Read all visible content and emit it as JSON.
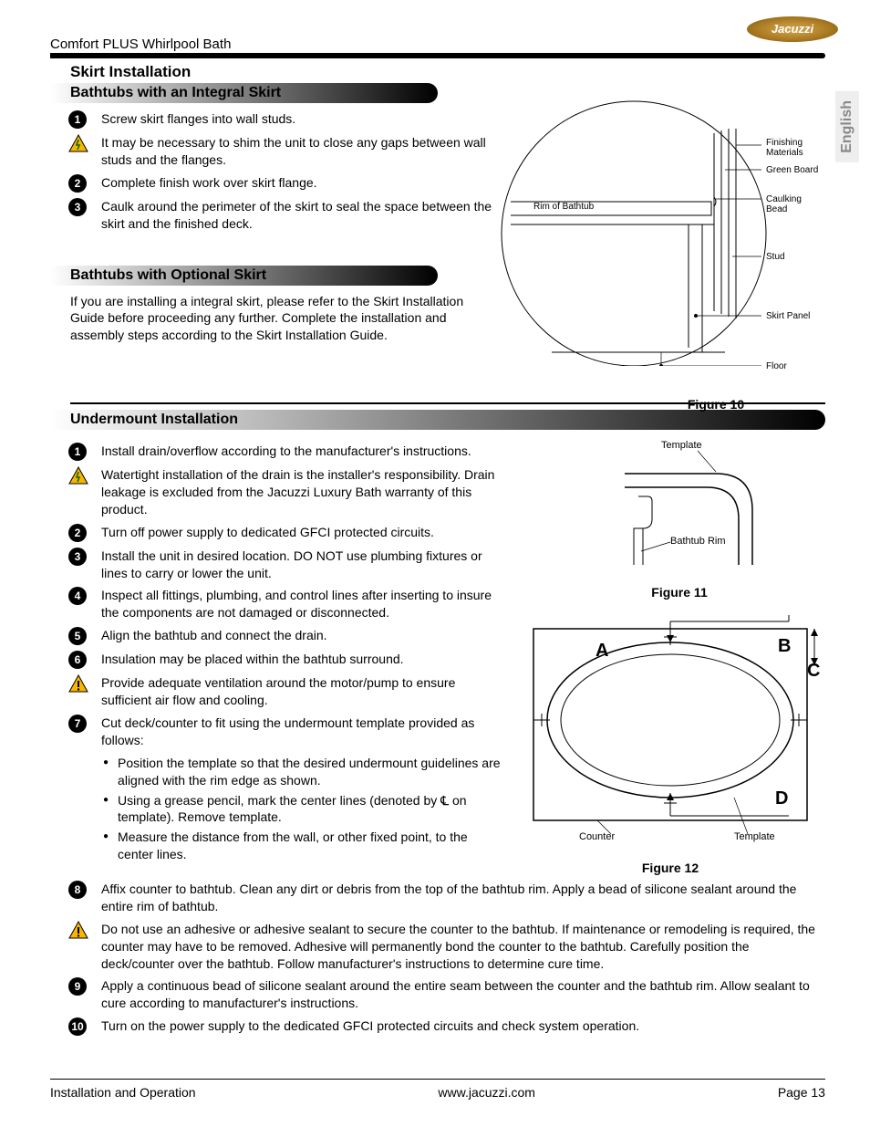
{
  "brand": "Jacuzzi",
  "product": "Comfort PLUS Whirlpool Bath",
  "language_tab": "English",
  "section_title": "Skirt Installation",
  "subsection1": {
    "title": "Bathtubs with an Integral Skirt",
    "grad_width": 425,
    "steps": [
      {
        "n": "1",
        "text": "Screw skirt flanges into wall studs."
      },
      {
        "warn": "shock",
        "text": "It may be necessary to shim the unit to close any gaps between wall studs and the flanges."
      },
      {
        "n": "2",
        "text": "Complete finish work over skirt flange."
      },
      {
        "n": "3",
        "text": "Caulk around the perimeter of the skirt to seal the space between the skirt and the finished deck."
      }
    ]
  },
  "subsection2": {
    "title": "Bathtubs with Optional Skirt",
    "grad_width": 425,
    "para": "If you are installing a integral skirt, please refer to the Skirt Installation Guide before proceeding any further. Complete the installation and assembly steps according to the Skirt Installation Guide."
  },
  "figure10": {
    "caption": "Figure 10",
    "labels": {
      "rim": "Rim of Bathtub",
      "finishing": "Finishing Materials",
      "greenboard": "Green Board",
      "caulking": "Caulking Bead",
      "stud": "Stud",
      "skirt": "Skirt Panel",
      "floor": "Floor"
    }
  },
  "section3": {
    "title": "Undermount Installation",
    "grad_width": 850,
    "steps_top": [
      {
        "n": "1",
        "text": "Install drain/overflow according to the manufacturer's instructions."
      },
      {
        "warn": "shock",
        "text": "Watertight installation of the drain is the installer's responsibility. Drain leakage is excluded from the Jacuzzi Luxury Bath warranty of this product."
      },
      {
        "n": "2",
        "text": "Turn off power supply to dedicated GFCI protected circuits."
      },
      {
        "n": "3",
        "text": "Install the unit in desired location. DO NOT use plumbing fixtures or lines to carry or lower the unit."
      },
      {
        "n": "4",
        "text": "Inspect all fittings, plumbing, and control lines after inserting to insure the components are not damaged or disconnected."
      },
      {
        "n": "5",
        "text": "Align the bathtub and connect the drain."
      },
      {
        "n": "6",
        "text": "Insulation may be placed within the bathtub surround."
      },
      {
        "warn": "excl",
        "text": "Provide adequate ventilation around the motor/pump to ensure sufficient air flow and cooling."
      },
      {
        "n": "7",
        "text": "Cut deck/counter to fit using the undermount template provided as follows:"
      }
    ],
    "bullets": [
      "Position the template so that the desired undermount guidelines are aligned with the rim edge as shown.",
      "Using a grease pencil, mark the center lines (denoted by ℄ on template). Remove template.",
      "Measure the distance from the wall, or other fixed point, to the center lines."
    ],
    "steps_bottom": [
      {
        "n": "8",
        "text": "Affix counter to bathtub. Clean any dirt or debris from the top of the bathtub rim. Apply a bead of silicone sealant around the entire rim of bathtub."
      },
      {
        "warn": "excl",
        "text": "Do not use an adhesive or adhesive sealant to secure the counter to the bathtub. If maintenance or remodeling is required, the counter may have to be removed. Adhesive will permanently bond the counter to the bathtub. Carefully position the deck/counter over the bathtub. Follow manufacturer's instructions to determine cure time."
      },
      {
        "n": "9",
        "text": "Apply a continuous bead of silicone sealant around the entire seam between the counter and the bathtub rim. Allow sealant to cure according to manufacturer's instructions."
      },
      {
        "n": "10",
        "text": "Turn on the power supply to the dedicated GFCI protected circuits and check system operation."
      }
    ]
  },
  "figure11": {
    "caption": "Figure 11",
    "labels": {
      "template": "Template",
      "rim": "Bathtub Rim"
    }
  },
  "figure12": {
    "caption": "Figure 12",
    "labels": {
      "counter": "Counter",
      "template": "Template",
      "A": "A",
      "B": "B",
      "C": "C",
      "D": "D"
    }
  },
  "footer": {
    "left": "Installation and Operation",
    "center": "www.jacuzzi.com",
    "right": "Page 13"
  },
  "colors": {
    "warn_fill": "#f7b500",
    "warn_stroke": "#000000"
  }
}
